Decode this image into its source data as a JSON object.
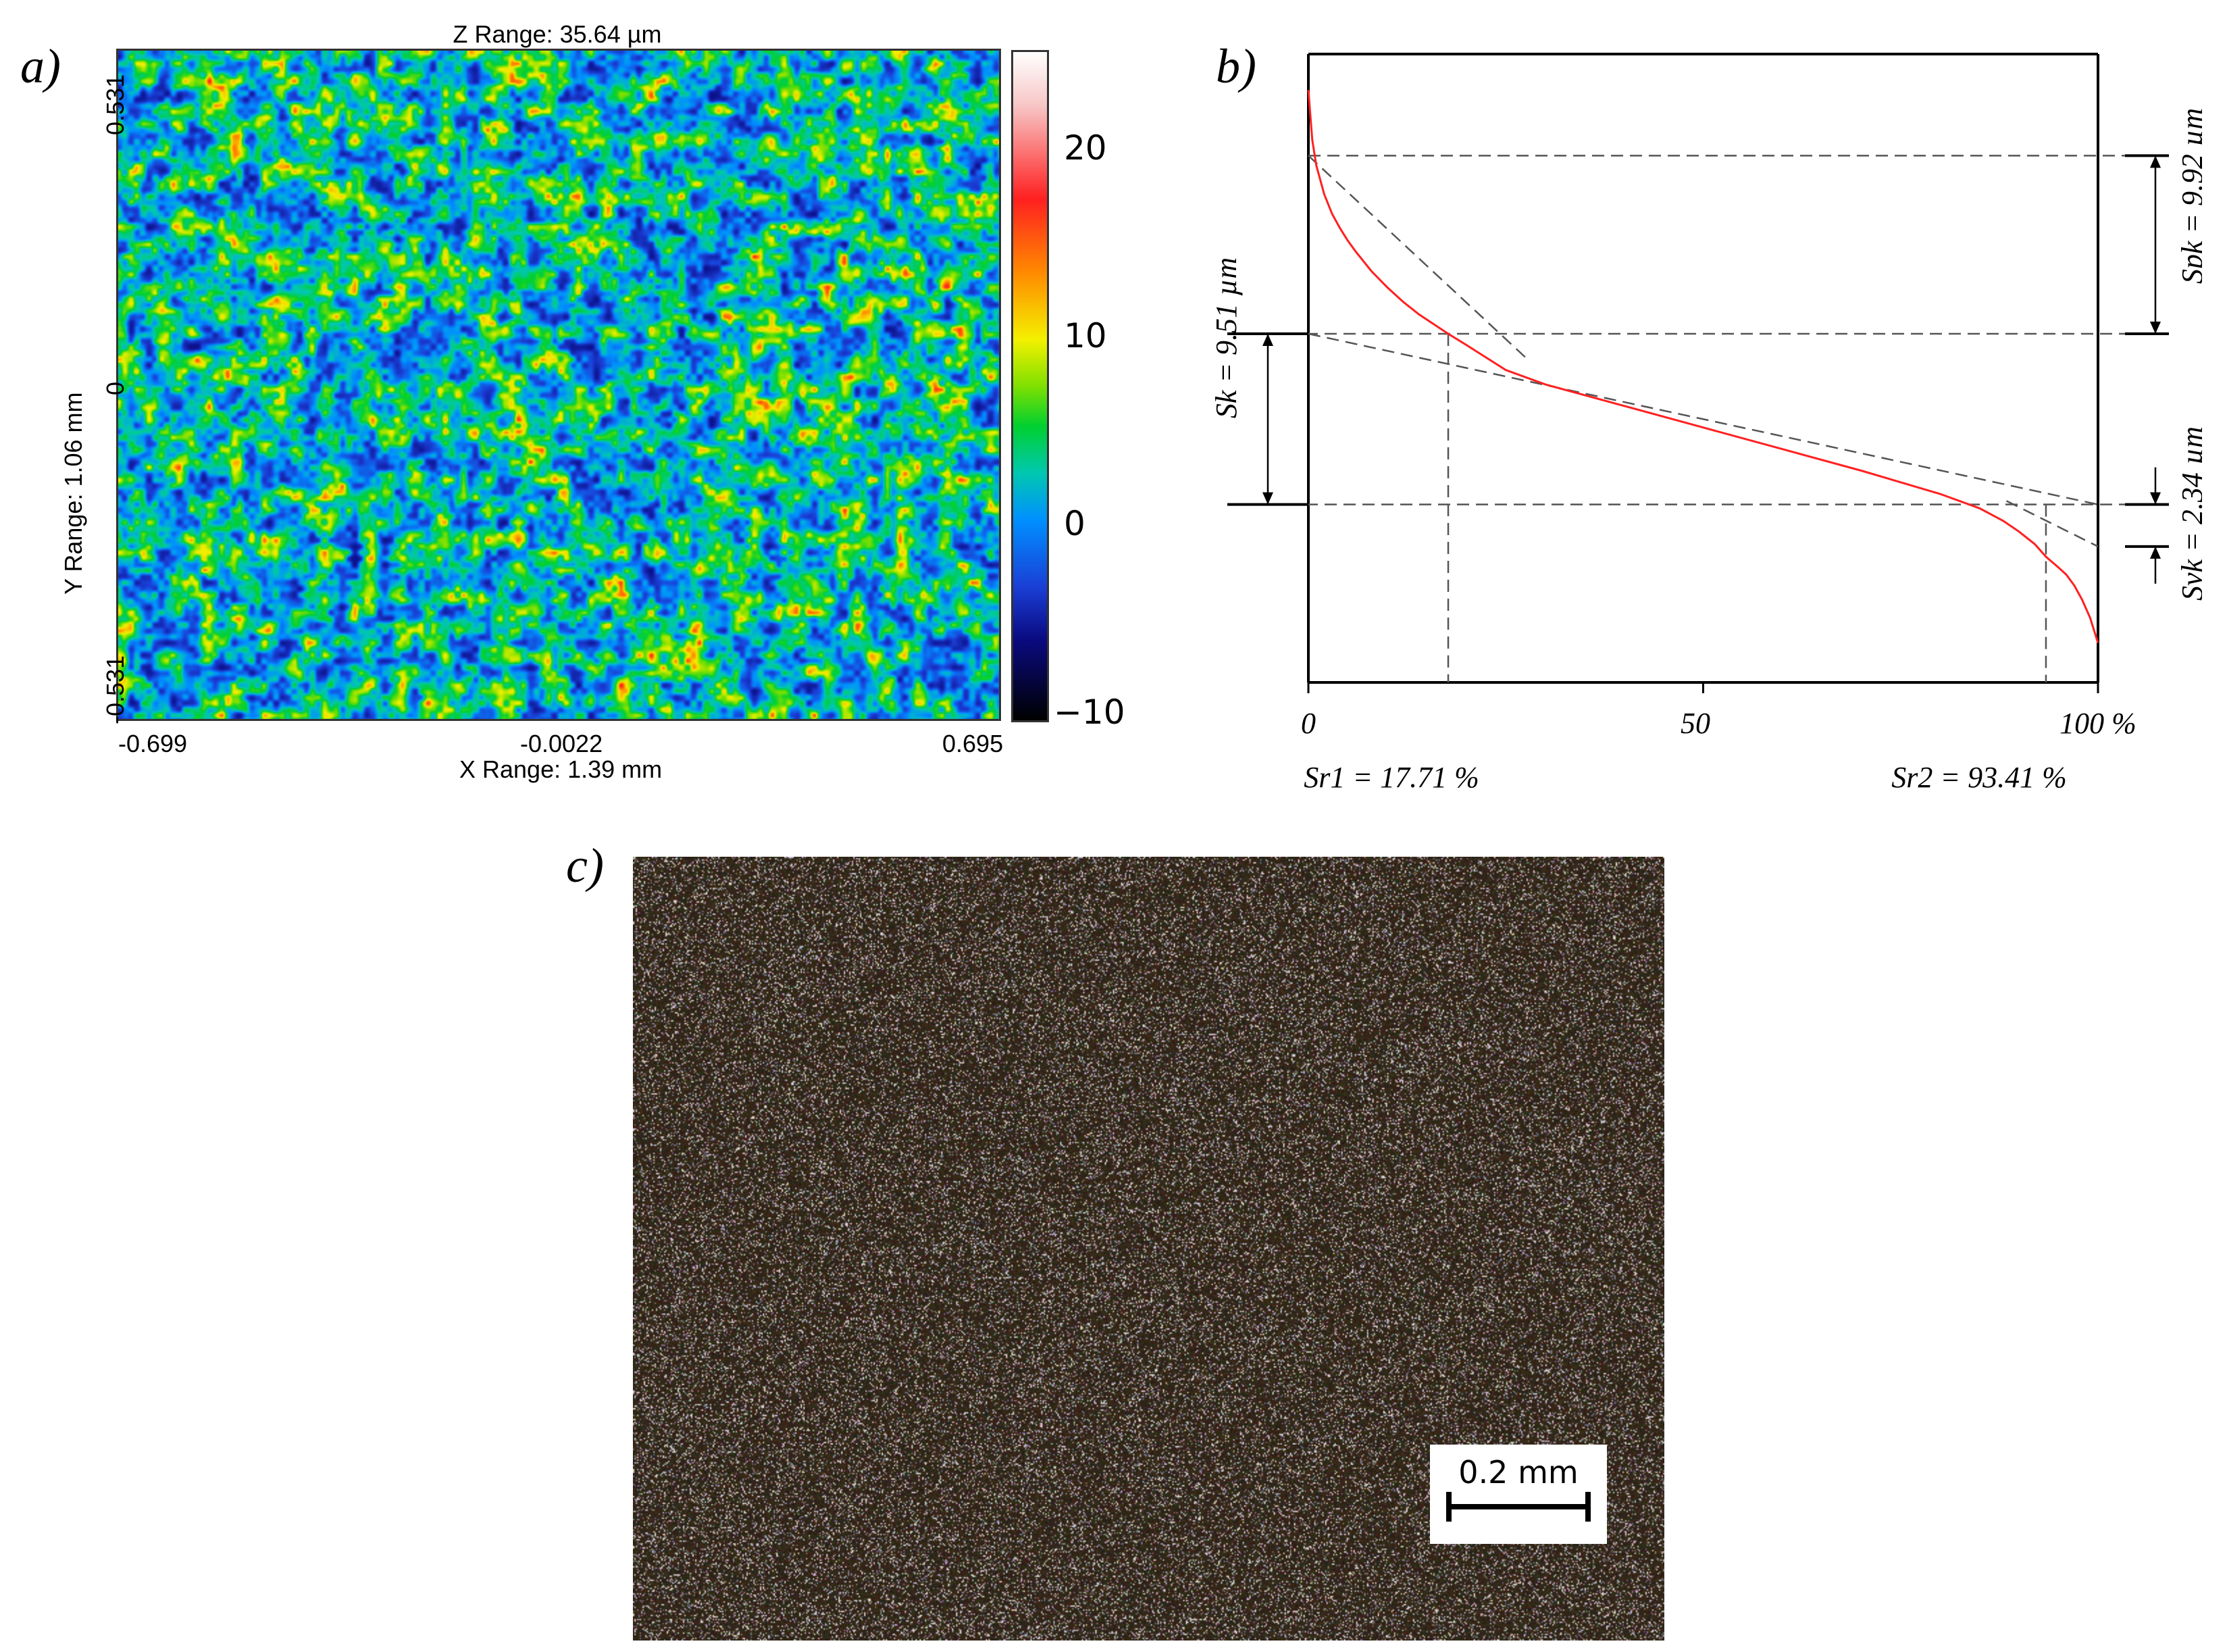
{
  "panels": {
    "a_label": "a)",
    "b_label": "b)",
    "c_label": "c)"
  },
  "chart_data": [
    {
      "type": "heatmap",
      "title": "Z Range:  35.64 µm",
      "xlabel": "X Range:  1.39 mm",
      "ylabel": "Y Range:  1.06 mm",
      "x_ticks": [
        "-0.699",
        "-0.0022",
        "0.695"
      ],
      "y_ticks": [
        "0.531",
        "0",
        "-0.531"
      ],
      "xlim": [
        -0.699,
        0.695
      ],
      "ylim": [
        -0.531,
        0.531
      ],
      "colorbar": {
        "ticks": [
          "20",
          "10",
          "0",
          "−10"
        ],
        "range": [
          -10.6,
          25
        ],
        "colors": [
          "#000000",
          "#0a0a80",
          "#1a3fd6",
          "#0090ff",
          "#00c8b0",
          "#00d030",
          "#7fe000",
          "#f4f000",
          "#ff8a00",
          "#ff2020",
          "#f7c6c6",
          "#ffffff"
        ]
      }
    },
    {
      "type": "line",
      "x_ticks": [
        "0",
        "50",
        "100 %"
      ],
      "xlim": [
        0,
        100
      ],
      "ylim": [
        -12,
        23
      ],
      "series": [
        {
          "color": "#ff2020",
          "x": [
            0,
            0.5,
            1,
            2,
            3,
            4,
            5,
            6,
            8,
            10,
            12,
            14,
            17.71,
            20,
            25,
            30,
            40,
            50,
            60,
            70,
            80,
            85,
            88,
            90,
            92,
            93.41,
            95,
            96,
            97,
            98,
            99,
            100
          ],
          "y": [
            21.0,
            18.2,
            16.8,
            15.2,
            14.1,
            13.3,
            12.6,
            12.0,
            10.9,
            10.0,
            9.2,
            8.5,
            7.42,
            6.8,
            5.4,
            4.6,
            3.4,
            2.2,
            1.0,
            -0.2,
            -1.5,
            -2.3,
            -3.0,
            -3.6,
            -4.3,
            -5.0,
            -5.6,
            -6.0,
            -6.6,
            -7.4,
            -8.4,
            -9.8
          ]
        }
      ],
      "levels": {
        "spk_top": 17.34,
        "sk_top": 7.42,
        "sk_bottom": -2.09,
        "svk_bottom": -4.43
      },
      "sr1": 17.71,
      "sr2": 93.41,
      "annotations": {
        "sk": "Sk = 9.51 µm",
        "spk": "Spk = 9.92 µm",
        "svk": "Svk = 2.34 µm",
        "sr1": "Sr1 = 17.71 %",
        "sr2": "Sr2 = 93.41 %"
      }
    }
  ],
  "scale_bar": {
    "label": "0.2 mm"
  },
  "map_seed": 7
}
